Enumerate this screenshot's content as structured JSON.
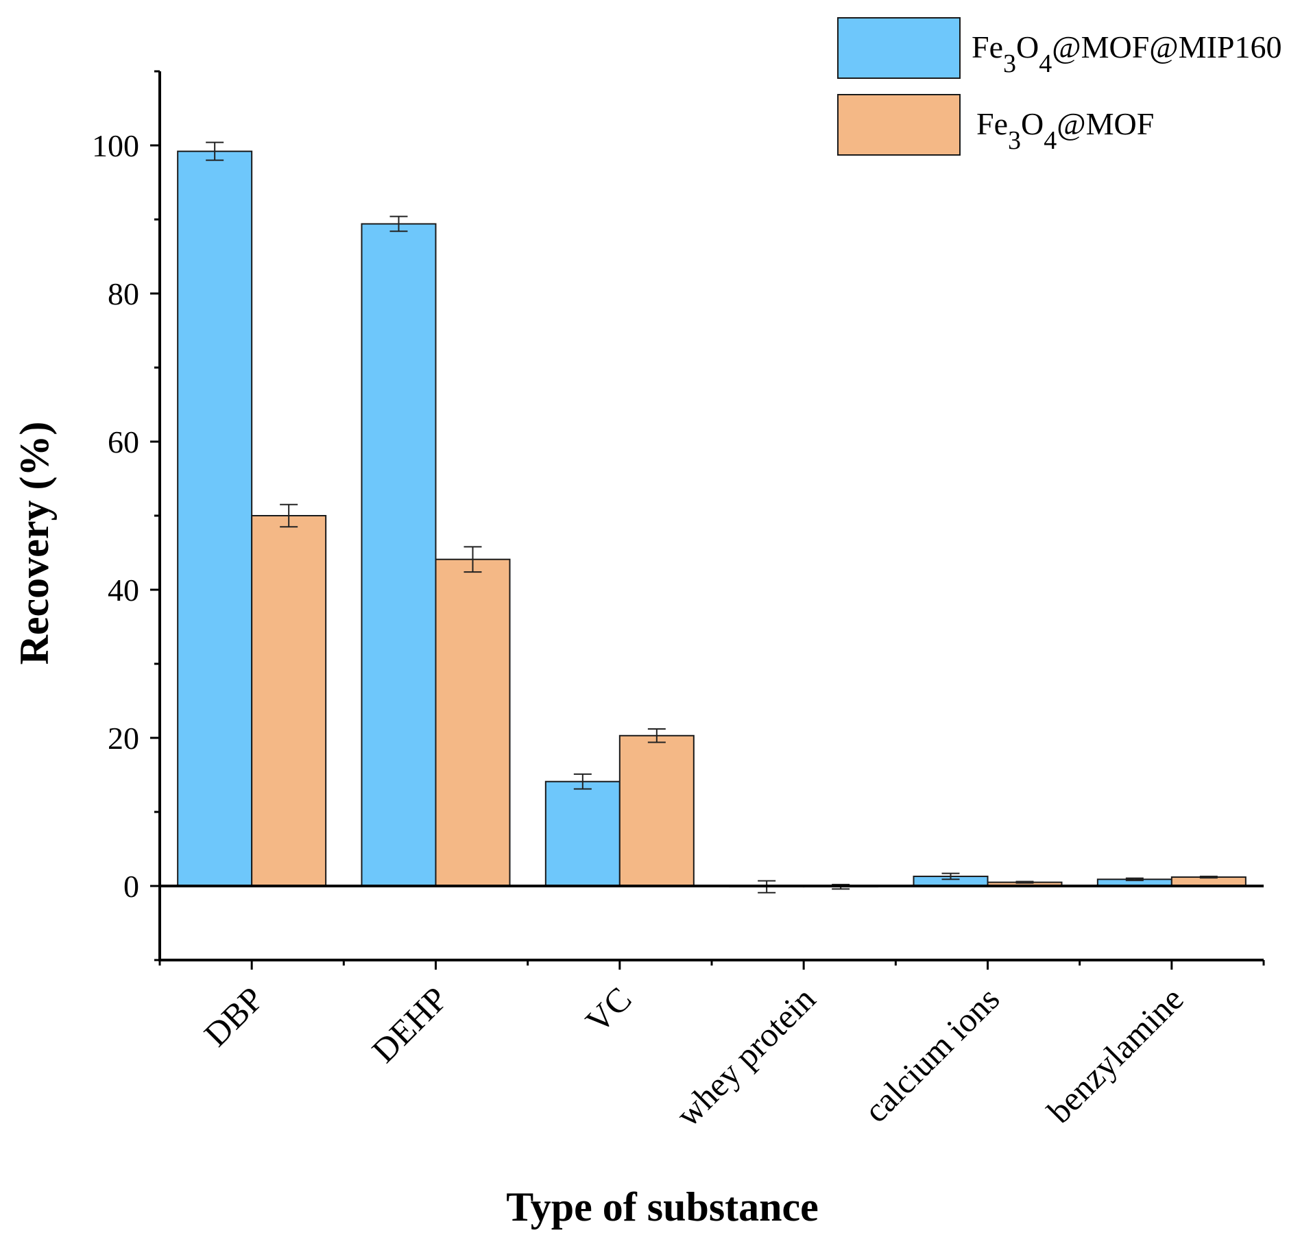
{
  "chart_data": {
    "type": "bar",
    "title": "",
    "xlabel": "Type of substance",
    "ylabel": "Recovery (%)",
    "ylim": [
      -10,
      110
    ],
    "yticks": [
      0,
      20,
      40,
      60,
      80,
      100
    ],
    "yticks_minor": [
      -10,
      10,
      30,
      50,
      70,
      90,
      110
    ],
    "grid": false,
    "legend_position": "top-right",
    "categories": [
      "DBP",
      "DEHP",
      "VC",
      "whey protein",
      "calcium ions",
      "benzylamine"
    ],
    "series": [
      {
        "name": "Fe3O4@MOF@MIP160",
        "legend_parts": {
          "base": "Fe",
          "sub1": "3",
          "mid": "O",
          "sub2": "4",
          "rest": "@MOF@MIP160"
        },
        "color": "#6EC7FB",
        "values": [
          99.2,
          89.4,
          14.1,
          -0.1,
          1.3,
          0.9
        ],
        "errors": [
          1.2,
          1.0,
          1.0,
          0.8,
          0.4,
          0.15
        ]
      },
      {
        "name": "Fe3O4@MOF",
        "legend_parts": {
          "base": "Fe",
          "sub1": "3",
          "mid": "O",
          "sub2": "4",
          "rest": "@MOF"
        },
        "color": "#F4B886",
        "values": [
          50.0,
          44.1,
          20.3,
          -0.1,
          0.5,
          1.2
        ],
        "errors": [
          1.5,
          1.7,
          0.9,
          0.3,
          0.1,
          0.1
        ]
      }
    ]
  }
}
